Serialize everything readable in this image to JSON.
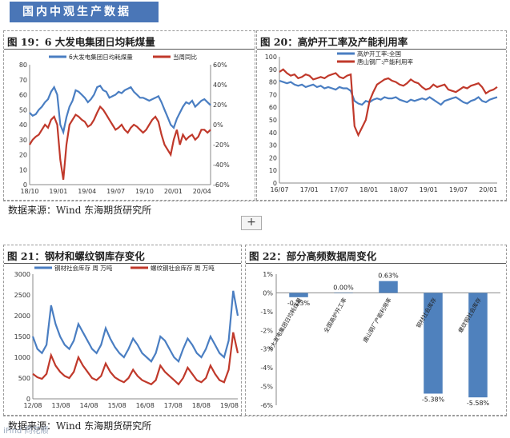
{
  "header": {
    "title": "国内中观生产数据"
  },
  "source": {
    "text": "数据来源：Wind   东海期货研究所"
  },
  "watermark": {
    "text": "iFind 同花顺"
  },
  "toolbar": {
    "plus_label": "+"
  },
  "colors": {
    "blue": "#4a7ec2",
    "red": "#c0392b",
    "bar": "#4f81bd",
    "banner": "#4a76b7"
  },
  "chart_data": [
    {
      "id": "fig19",
      "title": "图 19：6 大发电集团日均耗煤量",
      "type": "line",
      "x_ticks": [
        "18/10",
        "19/01",
        "19/04",
        "19/07",
        "19/10",
        "20/01",
        "20/04"
      ],
      "left_ylim": [
        0,
        80
      ],
      "left_ticks": [
        0,
        10,
        20,
        30,
        40,
        50,
        60,
        70,
        80
      ],
      "right_ylim": [
        -60,
        60
      ],
      "right_ticks": [
        "-60%",
        "-40%",
        "-20%",
        "0%",
        "20%",
        "40%",
        "60%"
      ],
      "series": [
        {
          "name": "6大发电集团日均耗煤量",
          "axis": "left",
          "color": "#4a7ec2",
          "values": [
            48,
            46,
            47,
            50,
            52,
            55,
            57,
            62,
            65,
            60,
            40,
            35,
            45,
            52,
            56,
            63,
            62,
            60,
            58,
            55,
            57,
            60,
            65,
            66,
            63,
            62,
            58,
            59,
            60,
            62,
            61,
            63,
            64,
            65,
            62,
            60,
            58,
            58,
            57,
            56,
            57,
            58,
            59,
            55,
            50,
            45,
            40,
            38,
            44,
            48,
            52,
            55,
            54,
            56,
            52,
            54,
            56,
            57,
            55,
            53
          ]
        },
        {
          "name": "当周同比",
          "axis": "right",
          "color": "#c0392b",
          "values": [
            -20,
            -15,
            -12,
            -10,
            -5,
            0,
            -3,
            5,
            8,
            0,
            -35,
            -55,
            -20,
            0,
            5,
            10,
            8,
            5,
            3,
            -2,
            0,
            5,
            12,
            18,
            15,
            10,
            5,
            0,
            -5,
            -3,
            0,
            -5,
            -8,
            -3,
            0,
            -2,
            -5,
            -8,
            -5,
            0,
            5,
            8,
            3,
            -10,
            -20,
            -25,
            -30,
            -15,
            -5,
            -20,
            -10,
            -15,
            -12,
            -10,
            -15,
            -12,
            -5,
            -5,
            -8,
            -5
          ]
        }
      ]
    },
    {
      "id": "fig20",
      "title": "图 20：高炉开工率及产能利用率",
      "type": "line",
      "x_ticks": [
        "16/07",
        "17/01",
        "17/07",
        "18/01",
        "18/07",
        "19/01",
        "19/07",
        "20/01"
      ],
      "ylim": [
        0,
        100
      ],
      "y_ticks": [
        0,
        10,
        20,
        30,
        40,
        50,
        60,
        70,
        80,
        90,
        100
      ],
      "series": [
        {
          "name": "高炉开工率:全国",
          "color": "#4a7ec2",
          "values": [
            81,
            80,
            79,
            80,
            78,
            77,
            78,
            76,
            77,
            78,
            76,
            77,
            75,
            76,
            75,
            74,
            76,
            75,
            75,
            73,
            65,
            63,
            62,
            65,
            64,
            66,
            67,
            66,
            68,
            67,
            67,
            68,
            66,
            65,
            64,
            66,
            65,
            66,
            67,
            66,
            68,
            66,
            64,
            62,
            65,
            66,
            67,
            68,
            66,
            64,
            63,
            65,
            66,
            68,
            65,
            64,
            66,
            67,
            68
          ]
        },
        {
          "name": "唐山钢厂:产能利用率",
          "color": "#c0392b",
          "values": [
            88,
            90,
            87,
            85,
            86,
            83,
            84,
            86,
            85,
            82,
            83,
            84,
            83,
            85,
            86,
            87,
            84,
            83,
            85,
            86,
            45,
            38,
            44,
            50,
            65,
            72,
            78,
            80,
            82,
            83,
            81,
            80,
            78,
            77,
            79,
            82,
            80,
            79,
            76,
            74,
            75,
            78,
            76,
            77,
            78,
            74,
            73,
            72,
            74,
            76,
            75,
            77,
            78,
            79,
            76,
            71,
            73,
            74,
            76
          ]
        }
      ]
    },
    {
      "id": "fig21",
      "title": "图 21：钢材和螺纹钢库存变化",
      "type": "line",
      "x_ticks": [
        "12/08",
        "13/08",
        "14/08",
        "15/08",
        "16/08",
        "17/08",
        "18/08",
        "19/08"
      ],
      "ylim": [
        0,
        3000
      ],
      "y_ticks": [
        0,
        500,
        1000,
        1500,
        2000,
        2500,
        3000
      ],
      "series": [
        {
          "name": "钢材社会库存 周 万吨",
          "color": "#4a7ec2",
          "values": [
            1500,
            1200,
            1100,
            1300,
            2250,
            1800,
            1500,
            1300,
            1200,
            1400,
            1800,
            1600,
            1400,
            1200,
            1100,
            1300,
            1700,
            1450,
            1250,
            1100,
            1000,
            1200,
            1450,
            1300,
            1100,
            1000,
            900,
            1100,
            1500,
            1400,
            1200,
            1000,
            900,
            1200,
            1450,
            1300,
            1100,
            1000,
            1200,
            1500,
            1300,
            1100,
            1000,
            1400,
            2600,
            2000
          ]
        },
        {
          "name": "螺纹钢社会库存 周 万吨",
          "color": "#c0392b",
          "values": [
            600,
            520,
            480,
            600,
            1050,
            800,
            650,
            550,
            500,
            650,
            1000,
            800,
            650,
            500,
            450,
            550,
            850,
            650,
            520,
            450,
            400,
            500,
            700,
            550,
            450,
            400,
            350,
            450,
            800,
            650,
            550,
            450,
            350,
            500,
            750,
            600,
            450,
            400,
            500,
            800,
            600,
            450,
            400,
            700,
            1600,
            1100
          ]
        }
      ]
    },
    {
      "id": "fig22",
      "title": "图 22：部分高频数据周变化",
      "type": "bar",
      "ylim": [
        -6,
        1
      ],
      "y_ticks": [
        "1%",
        "0%",
        "-1%",
        "-2%",
        "-3%",
        "-4%",
        "-5%",
        "-6%"
      ],
      "categories": [
        "6大发电集团日均耗煤量",
        "全国高炉开工率",
        "唐山钢厂产能利用率",
        "钢材社会库存",
        "螺纹钢社会库存"
      ],
      "values": [
        -0.23,
        0.0,
        0.63,
        -5.38,
        -5.58
      ],
      "data_labels": [
        "-0.23%",
        "0.00%",
        "0.63%",
        "-5.38%",
        "-5.58%"
      ]
    }
  ]
}
